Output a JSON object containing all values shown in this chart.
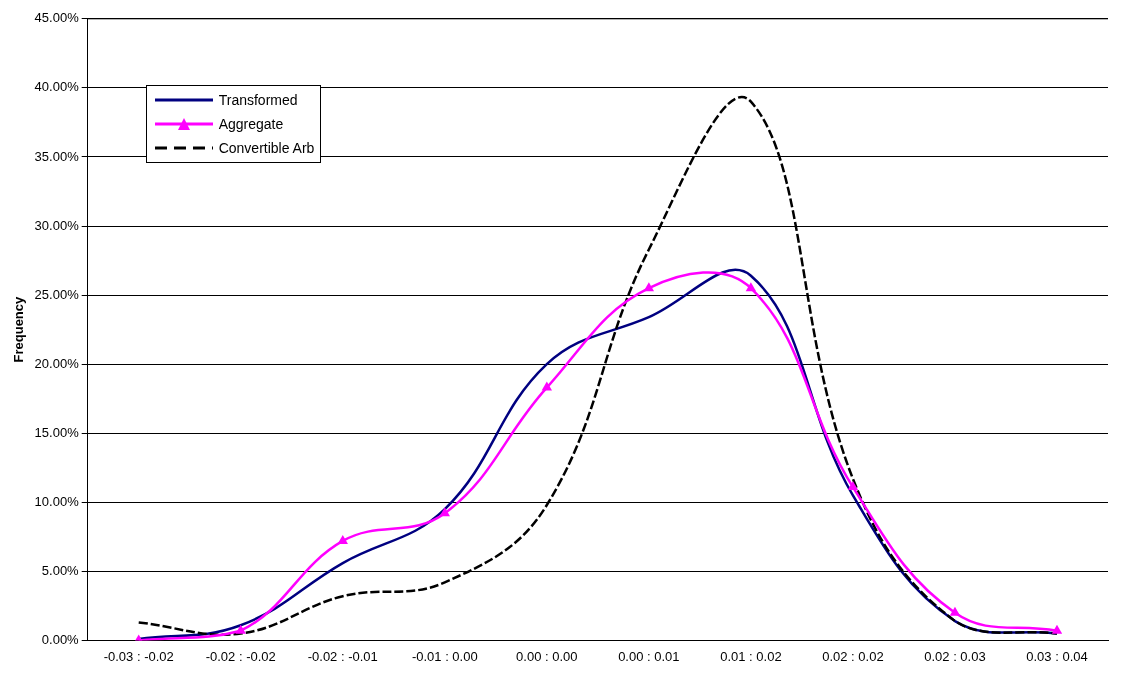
{
  "chart_data": {
    "type": "line",
    "ylabel": "Frequency",
    "categories": [
      "-0.03 : -0.02",
      "-0.02 : -0.02",
      "-0.02 : -0.01",
      "-0.01 : 0.00",
      "0.00 : 0.00",
      "0.00 : 0.01",
      "0.01 : 0.02",
      "0.02 : 0.02",
      "0.02 : 0.03",
      "0.03 : 0.04"
    ],
    "series": [
      {
        "name": "Transformed",
        "color": "#000080",
        "marker": "none",
        "line_style": "solid",
        "values": [
          0.1,
          1.1,
          5.6,
          9.5,
          20.0,
          23.4,
          26.4,
          10.5,
          1.4,
          0.5
        ]
      },
      {
        "name": "Aggregate",
        "color": "#ff00ff",
        "marker": "triangle",
        "line_style": "solid",
        "values": [
          0,
          0.7,
          7.2,
          9.2,
          18.3,
          25.5,
          25.5,
          11.1,
          2.0,
          0.7
        ]
      },
      {
        "name": "Convertible Arb",
        "color": "#000000",
        "marker": "none",
        "line_style": "dashed",
        "values": [
          1.3,
          0.5,
          3.2,
          4.2,
          9.8,
          28.3,
          39.0,
          11.7,
          1.4,
          0.5
        ]
      }
    ],
    "ylim": [
      0,
      45
    ],
    "yticks": [
      {
        "value": 0,
        "label": "0.00%"
      },
      {
        "value": 5,
        "label": "5.00%"
      },
      {
        "value": 10,
        "label": "10.00%"
      },
      {
        "value": 15,
        "label": "15.00%"
      },
      {
        "value": 20,
        "label": "20.00%"
      },
      {
        "value": 25,
        "label": "25.00%"
      },
      {
        "value": 30,
        "label": "30.00%"
      },
      {
        "value": 35,
        "label": "35.00%"
      },
      {
        "value": 40,
        "label": "40.00%"
      },
      {
        "value": 45,
        "label": "45.00%"
      }
    ],
    "grid": "y",
    "legend": "top left"
  }
}
